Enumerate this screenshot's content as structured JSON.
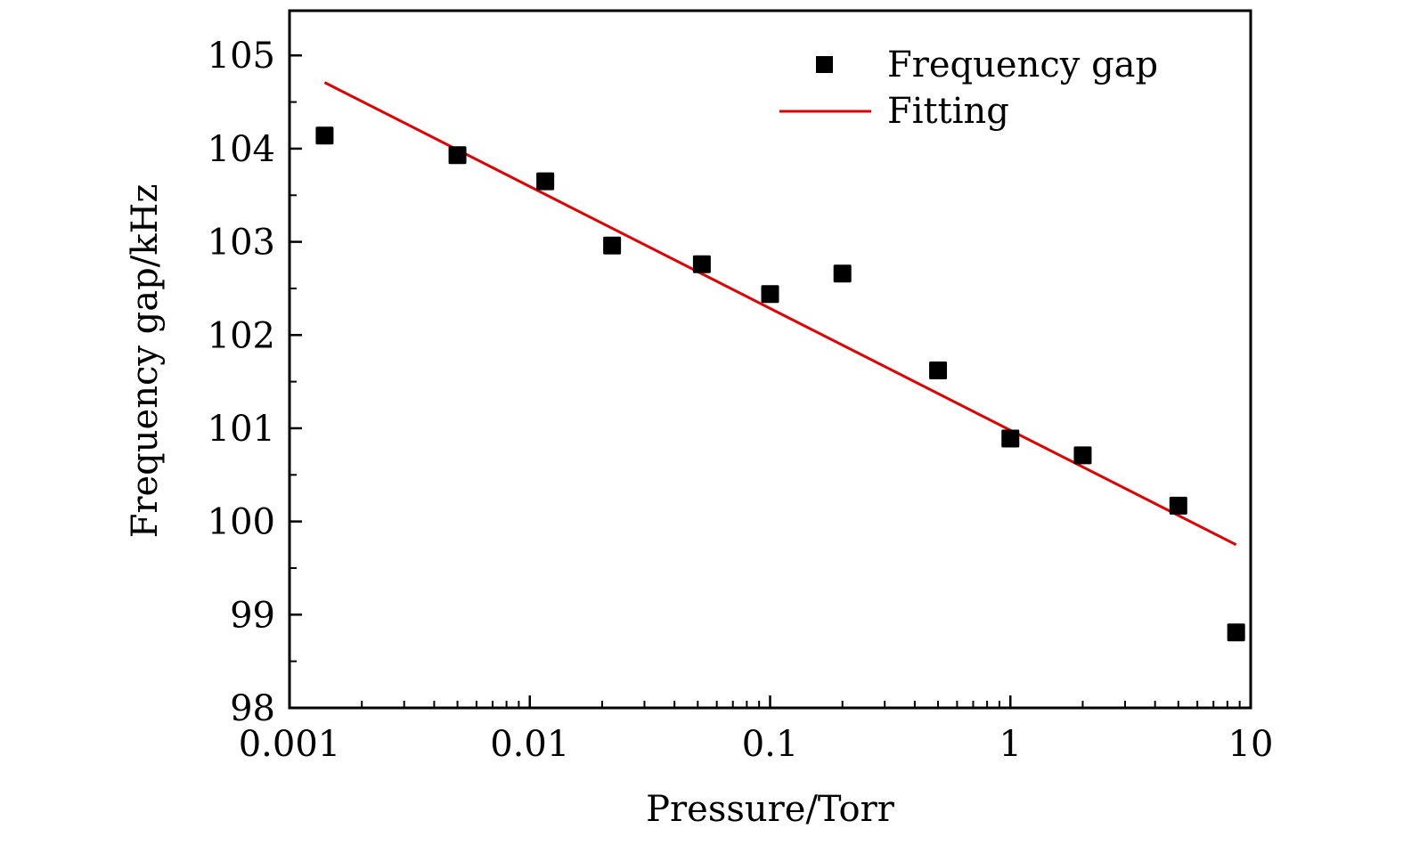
{
  "chart_data": {
    "type": "scatter",
    "title": "",
    "xlabel": "Pressure/Torr",
    "ylabel": "Frequency gap/kHz",
    "xscale": "log",
    "xlim": [
      0.001,
      10
    ],
    "ylim": [
      98,
      105.48
    ],
    "x_ticks": [
      0.001,
      0.01,
      0.1,
      1,
      10
    ],
    "x_tick_labels": [
      "0.001",
      "0.01",
      "0.1",
      "1",
      "10"
    ],
    "y_ticks": [
      98,
      99,
      100,
      101,
      102,
      103,
      104,
      105
    ],
    "y_tick_labels": [
      "98",
      "99",
      "100",
      "101",
      "102",
      "103",
      "104",
      "105"
    ],
    "y_minor_step": 0.5,
    "grid": false,
    "legend_position": "top-right",
    "series": [
      {
        "name": "Frequency gap",
        "kind": "scatter",
        "marker": "square",
        "color": "#000000",
        "x": [
          0.0014,
          0.005,
          0.0116,
          0.022,
          0.052,
          0.1,
          0.2,
          0.5,
          1,
          2,
          5,
          8.7
        ],
        "y": [
          104.14,
          103.93,
          103.65,
          102.96,
          102.76,
          102.44,
          102.66,
          101.62,
          100.89,
          100.71,
          100.17,
          98.81
        ]
      },
      {
        "name": "Fitting",
        "kind": "line",
        "color": "#e00000",
        "x": [
          0.0014,
          8.7
        ],
        "y": [
          104.71,
          99.75
        ]
      }
    ]
  }
}
